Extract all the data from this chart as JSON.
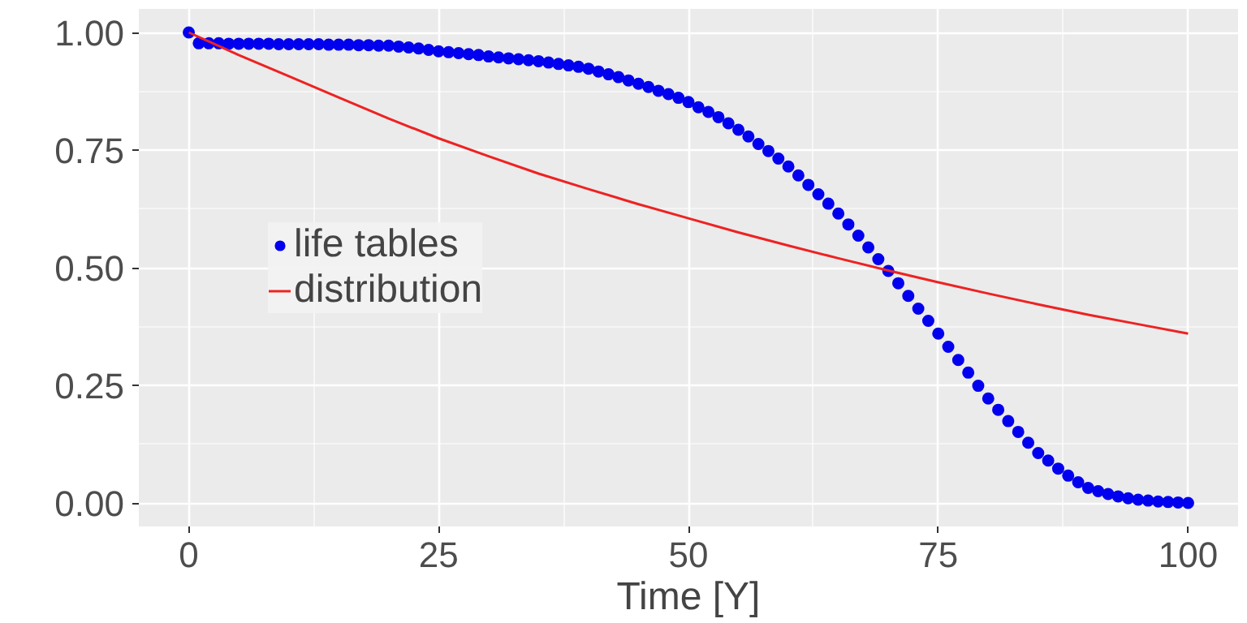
{
  "chart_data": {
    "type": "scatter",
    "xlabel": "Time [Y]",
    "xlim": [
      -5,
      105
    ],
    "ylim": [
      -0.05,
      1.05
    ],
    "xticks": [
      0,
      25,
      50,
      75,
      100
    ],
    "yticks": [
      {
        "value": 0,
        "label": "0.00"
      },
      {
        "value": 0.25,
        "label": "0.25"
      },
      {
        "value": 0.5,
        "label": "0.50"
      },
      {
        "value": 0.75,
        "label": "0.75"
      },
      {
        "value": 1,
        "label": "1.00"
      }
    ],
    "grid": true,
    "legend": "left",
    "series": [
      {
        "name": "life tables",
        "marker": "circle",
        "color": "#0000ee",
        "x": [
          0,
          1,
          2,
          3,
          4,
          5,
          6,
          7,
          8,
          9,
          10,
          11,
          12,
          13,
          14,
          15,
          16,
          17,
          18,
          19,
          20,
          21,
          22,
          23,
          24,
          25,
          26,
          27,
          28,
          29,
          30,
          31,
          32,
          33,
          34,
          35,
          36,
          37,
          38,
          39,
          40,
          41,
          42,
          43,
          44,
          45,
          46,
          47,
          48,
          49,
          50,
          51,
          52,
          53,
          54,
          55,
          56,
          57,
          58,
          59,
          60,
          61,
          62,
          63,
          64,
          65,
          66,
          67,
          68,
          69,
          70,
          71,
          72,
          73,
          74,
          75,
          76,
          77,
          78,
          79,
          80,
          81,
          82,
          83,
          84,
          85,
          86,
          87,
          88,
          89,
          90,
          91,
          92,
          93,
          94,
          95,
          96,
          97,
          98,
          99,
          100
        ],
        "values": [
          1.0,
          0.977,
          0.977,
          0.977,
          0.976,
          0.976,
          0.976,
          0.976,
          0.976,
          0.975,
          0.975,
          0.975,
          0.975,
          0.975,
          0.974,
          0.974,
          0.974,
          0.973,
          0.973,
          0.972,
          0.972,
          0.97,
          0.968,
          0.966,
          0.963,
          0.96,
          0.958,
          0.956,
          0.954,
          0.952,
          0.949,
          0.947,
          0.945,
          0.943,
          0.941,
          0.939,
          0.936,
          0.933,
          0.93,
          0.927,
          0.923,
          0.917,
          0.911,
          0.905,
          0.898,
          0.891,
          0.884,
          0.876,
          0.869,
          0.861,
          0.852,
          0.841,
          0.831,
          0.82,
          0.807,
          0.793,
          0.779,
          0.763,
          0.748,
          0.732,
          0.715,
          0.696,
          0.676,
          0.656,
          0.636,
          0.615,
          0.592,
          0.568,
          0.543,
          0.518,
          0.493,
          0.467,
          0.44,
          0.413,
          0.387,
          0.36,
          0.332,
          0.304,
          0.277,
          0.249,
          0.222,
          0.198,
          0.174,
          0.151,
          0.128,
          0.106,
          0.09,
          0.073,
          0.058,
          0.044,
          0.032,
          0.025,
          0.019,
          0.014,
          0.01,
          0.007,
          0.005,
          0.003,
          0.002,
          0.001,
          0.0
        ]
      },
      {
        "name": "distribution",
        "type": "line",
        "line_style": "solid",
        "color": "#ee2222",
        "x": [
          0,
          5,
          10,
          15,
          20,
          25,
          30,
          35,
          40,
          45,
          50,
          55,
          60,
          65,
          70,
          75,
          80,
          85,
          90,
          95,
          100
        ],
        "values": [
          1.0,
          0.952,
          0.907,
          0.862,
          0.817,
          0.775,
          0.737,
          0.7,
          0.667,
          0.635,
          0.605,
          0.575,
          0.547,
          0.52,
          0.494,
          0.469,
          0.445,
          0.422,
          0.4,
          0.38,
          0.36
        ]
      }
    ]
  }
}
